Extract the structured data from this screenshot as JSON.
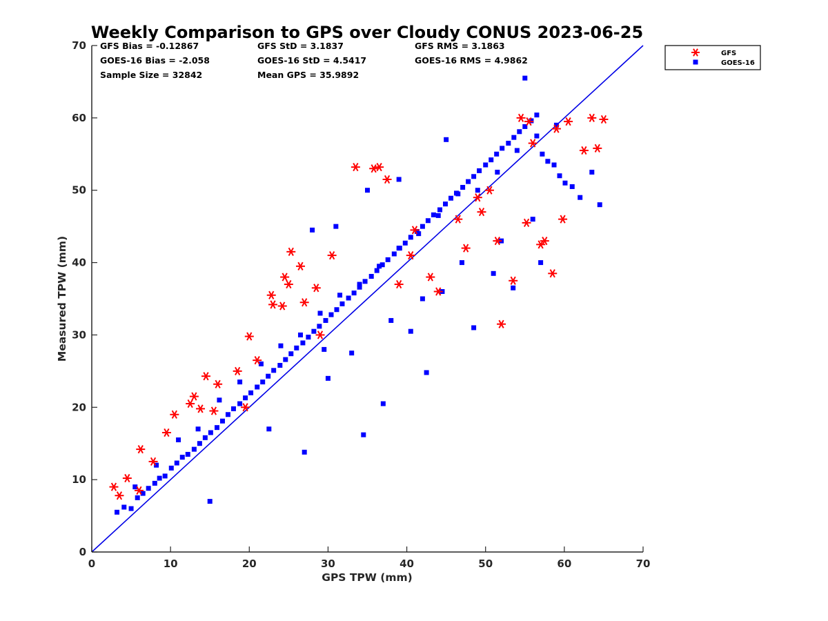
{
  "chart_data": {
    "type": "scatter",
    "title": "Weekly Comparison to GPS over Cloudy CONUS 2023-06-25",
    "xlabel": "GPS TPW (mm)",
    "ylabel": "Measured TPW (mm)",
    "xlim": [
      0,
      70
    ],
    "ylim": [
      0,
      70
    ],
    "xticks": [
      "0",
      "10",
      "20",
      "30",
      "40",
      "50",
      "60",
      "70"
    ],
    "yticks": [
      "0",
      "10",
      "20",
      "30",
      "40",
      "50",
      "60",
      "70"
    ],
    "grid": false,
    "legend_position": "outside-top-right",
    "reference_line": {
      "x": [
        0,
        70
      ],
      "y": [
        0,
        70
      ],
      "color": "#0000e6"
    },
    "stats": [
      [
        "GFS Bias = -0.12867",
        "GFS StD = 3.1837",
        "GFS RMS = 3.1863"
      ],
      [
        "GOES-16 Bias = -2.058",
        "GOES-16 StD = 4.5417",
        "GOES-16 RMS = 4.9862"
      ],
      [
        "Sample Size = 32842",
        "Mean GPS = 35.9892"
      ]
    ],
    "series": [
      {
        "name": "GOES-16",
        "marker": "square",
        "color": "#0000ff",
        "x": [
          3.2,
          4.1,
          5.0,
          5.8,
          6.5,
          7.2,
          8.0,
          8.6,
          9.3,
          10.1,
          10.8,
          11.5,
          12.2,
          13.0,
          13.7,
          14.4,
          15.1,
          15.9,
          16.6,
          17.3,
          18.0,
          18.8,
          19.5,
          20.2,
          21.0,
          21.7,
          22.4,
          23.1,
          23.9,
          24.6,
          25.3,
          26.0,
          26.8,
          27.5,
          28.2,
          28.9,
          29.7,
          30.4,
          31.1,
          31.8,
          32.6,
          33.3,
          34.0,
          34.7,
          35.5,
          36.2,
          36.9,
          37.6,
          38.4,
          39.1,
          39.8,
          40.5,
          41.3,
          42.0,
          42.7,
          43.4,
          44.2,
          44.9,
          45.6,
          46.3,
          47.1,
          47.8,
          48.5,
          49.2,
          50.0,
          50.7,
          51.4,
          52.1,
          52.9,
          53.6,
          54.3,
          55.0,
          55.8,
          56.5,
          57.2,
          57.9,
          58.7,
          59.4,
          60.1,
          61.0,
          62.0,
          63.5,
          64.5,
          5.5,
          8.2,
          11.0,
          13.5,
          16.2,
          18.8,
          21.5,
          24.0,
          26.5,
          29.0,
          31.5,
          34.0,
          36.5,
          39.0,
          41.5,
          44.0,
          46.5,
          49.0,
          51.5,
          54.0,
          56.5,
          59.0,
          28.0,
          31.0,
          35.0,
          39.0,
          30.0,
          33.0,
          38.0,
          42.0,
          47.0,
          52.0,
          56.0,
          44.5,
          51.0,
          27.0,
          34.5,
          37.0,
          42.5,
          48.5,
          53.5,
          55.0,
          57.0,
          22.5,
          45.0,
          40.5,
          29.5,
          15.0
        ],
        "y": [
          5.5,
          6.2,
          6.0,
          7.5,
          8.1,
          8.8,
          9.5,
          10.2,
          10.5,
          11.6,
          12.3,
          13.1,
          13.5,
          14.2,
          15.0,
          15.8,
          16.5,
          17.2,
          18.1,
          19.0,
          19.8,
          20.5,
          21.3,
          22.0,
          22.8,
          23.5,
          24.3,
          25.1,
          25.8,
          26.6,
          27.4,
          28.2,
          28.9,
          29.7,
          30.5,
          31.2,
          32.0,
          32.8,
          33.5,
          34.3,
          35.1,
          35.8,
          36.6,
          37.4,
          38.1,
          38.9,
          39.7,
          40.4,
          41.2,
          42.0,
          42.7,
          43.5,
          44.3,
          45.0,
          45.8,
          46.6,
          47.3,
          48.1,
          48.9,
          49.6,
          50.4,
          51.2,
          51.9,
          52.7,
          53.5,
          54.2,
          55.0,
          55.8,
          56.5,
          57.3,
          58.1,
          58.8,
          59.6,
          60.4,
          55.0,
          54.0,
          53.5,
          52.0,
          51.0,
          50.5,
          49.0,
          52.5,
          48.0,
          9.0,
          12.0,
          15.5,
          17.0,
          21.0,
          23.5,
          26.0,
          28.5,
          30.0,
          33.0,
          35.5,
          37.0,
          39.5,
          42.0,
          44.0,
          46.5,
          49.5,
          50.0,
          52.5,
          55.5,
          57.5,
          59.0,
          44.5,
          45.0,
          50.0,
          51.5,
          24.0,
          27.5,
          32.0,
          35.0,
          40.0,
          43.0,
          46.0,
          36.0,
          38.5,
          13.8,
          16.2,
          20.5,
          24.8,
          31.0,
          36.5,
          65.5,
          40.0,
          17.0,
          57.0,
          30.5,
          28.0,
          7.0
        ]
      },
      {
        "name": "GFS",
        "marker": "asterisk",
        "color": "#ff0000",
        "x": [
          2.8,
          3.5,
          4.5,
          6.2,
          7.8,
          10.5,
          12.5,
          13.8,
          14.5,
          16.0,
          18.5,
          20.0,
          22.8,
          24.5,
          25.3,
          27.0,
          28.5,
          30.5,
          33.5,
          35.8,
          36.5,
          37.5,
          41.0,
          46.5,
          49.5,
          51.5,
          52.0,
          53.5,
          54.5,
          55.5,
          57.5,
          58.5,
          59.8,
          60.5,
          62.5,
          63.5,
          64.2,
          65.0,
          57.0,
          55.2,
          49.0,
          44.0,
          39.0,
          24.2,
          23.0,
          29.0,
          19.5,
          21.0,
          15.5,
          9.5,
          6.0,
          13.0,
          25.0,
          26.5,
          40.5,
          43.0,
          47.5,
          50.5,
          56.0,
          59.0
        ],
        "y": [
          9.0,
          7.8,
          10.2,
          14.2,
          12.5,
          19.0,
          20.5,
          19.8,
          24.3,
          23.2,
          25.0,
          29.8,
          35.5,
          38.0,
          41.5,
          34.5,
          36.5,
          41.0,
          53.2,
          53.0,
          53.2,
          51.5,
          44.5,
          46.0,
          47.0,
          43.0,
          31.5,
          37.5,
          60.0,
          59.5,
          43.0,
          38.5,
          46.0,
          59.5,
          55.5,
          60.0,
          55.8,
          59.8,
          42.5,
          45.5,
          49.0,
          36.0,
          37.0,
          34.0,
          34.2,
          30.0,
          20.0,
          26.5,
          19.5,
          16.5,
          8.5,
          21.5,
          37.0,
          39.5,
          41.0,
          38.0,
          42.0,
          50.0,
          56.5,
          58.5
        ]
      }
    ]
  }
}
